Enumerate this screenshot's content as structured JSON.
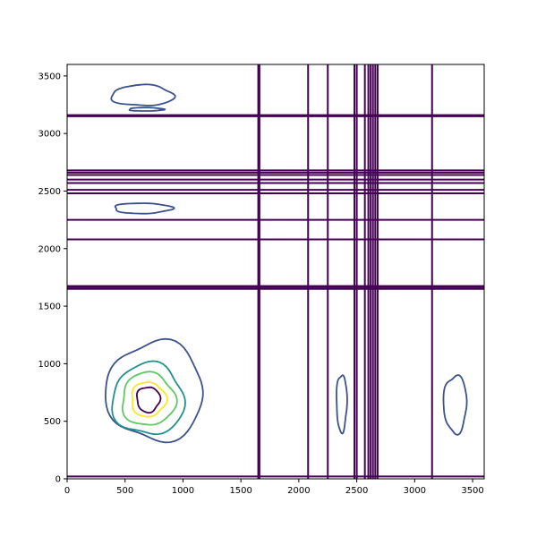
{
  "chart_data": {
    "type": "contour",
    "title": "",
    "xlabel": "",
    "ylabel": "",
    "xlim": [
      0,
      3600
    ],
    "ylim": [
      0,
      3600
    ],
    "xticks": [
      0,
      500,
      1000,
      1500,
      2000,
      2500,
      3000,
      3500
    ],
    "yticks": [
      0,
      500,
      1000,
      1500,
      2000,
      2500,
      3000,
      3500
    ],
    "xtick_labels": [
      "0",
      "500",
      "1000",
      "1500",
      "2000",
      "2500",
      "3000",
      "3500"
    ],
    "ytick_labels": [
      "0",
      "500",
      "1000",
      "1500",
      "2000",
      "2500",
      "3000",
      "3500"
    ],
    "grid": false,
    "colormap": "viridis",
    "level_colors": [
      "#440154",
      "#3b528b",
      "#21918c",
      "#5ec962",
      "#fde725"
    ],
    "horizontal_lines_y": [
      20,
      1650,
      1665,
      1675,
      2080,
      2250,
      2480,
      2510,
      2570,
      2600,
      2640,
      2660,
      2680,
      3150,
      3160
    ],
    "vertical_lines_x": [
      1650,
      1660,
      2080,
      2250,
      2480,
      2500,
      2570,
      2600,
      2620,
      2640,
      2660,
      2680,
      3150
    ],
    "closed_contours": [
      {
        "level": 1,
        "cx": 650,
        "cy": 3330,
        "rx": 270,
        "ry": 90
      },
      {
        "level": 1,
        "cx": 680,
        "cy": 3210,
        "rx": 150,
        "ry": 15
      },
      {
        "level": 1,
        "cx": 650,
        "cy": 2350,
        "rx": 250,
        "ry": 45
      },
      {
        "level": 1,
        "cx": 2370,
        "cy": 660,
        "rx": 45,
        "ry": 250
      },
      {
        "level": 1,
        "cx": 3350,
        "cy": 650,
        "rx": 100,
        "ry": 250
      },
      {
        "level": 1,
        "cx": 760,
        "cy": 760,
        "rx": 420,
        "ry": 430
      },
      {
        "level": 2,
        "cx": 700,
        "cy": 690,
        "rx": 310,
        "ry": 310
      },
      {
        "level": 3,
        "cx": 700,
        "cy": 690,
        "rx": 230,
        "ry": 230
      },
      {
        "level": 4,
        "cx": 700,
        "cy": 690,
        "rx": 150,
        "ry": 150
      },
      {
        "level": 5,
        "cx": 700,
        "cy": 690,
        "rx": 100,
        "ry": 110
      }
    ]
  }
}
